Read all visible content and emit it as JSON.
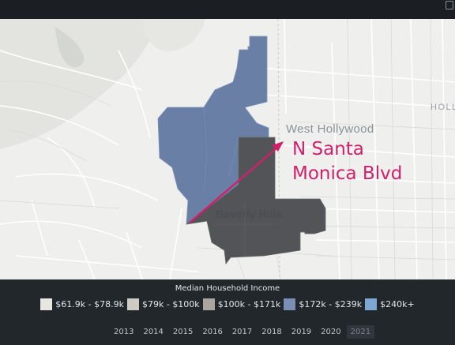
{
  "map": {
    "labels": {
      "west_hollywood": "West Hollywood",
      "beverly_hills": "Beverly Hills",
      "hollywood": "HOLL"
    },
    "annotation": {
      "line1": "N Santa",
      "line2": "Monica Blvd",
      "color": "#d1206b"
    },
    "region_colors": {
      "high_income": "#6a7fa6",
      "selected": "#525457"
    }
  },
  "legend": {
    "title": "Median Household Income",
    "items": [
      {
        "label": "$61.9k - $78.9k",
        "color": "#e8e6e1"
      },
      {
        "label": "$79k - $100k",
        "color": "#cfcac3"
      },
      {
        "label": "$100k - $171k",
        "color": "#aaa59f"
      },
      {
        "label": "$172k - $239k",
        "color": "#7b8fb5"
      },
      {
        "label": "$240k+",
        "color": "#7ea8d4"
      }
    ]
  },
  "years": {
    "items": [
      "2013",
      "2014",
      "2015",
      "2016",
      "2017",
      "2018",
      "2019",
      "2020",
      "2021"
    ],
    "selected": "2021"
  }
}
